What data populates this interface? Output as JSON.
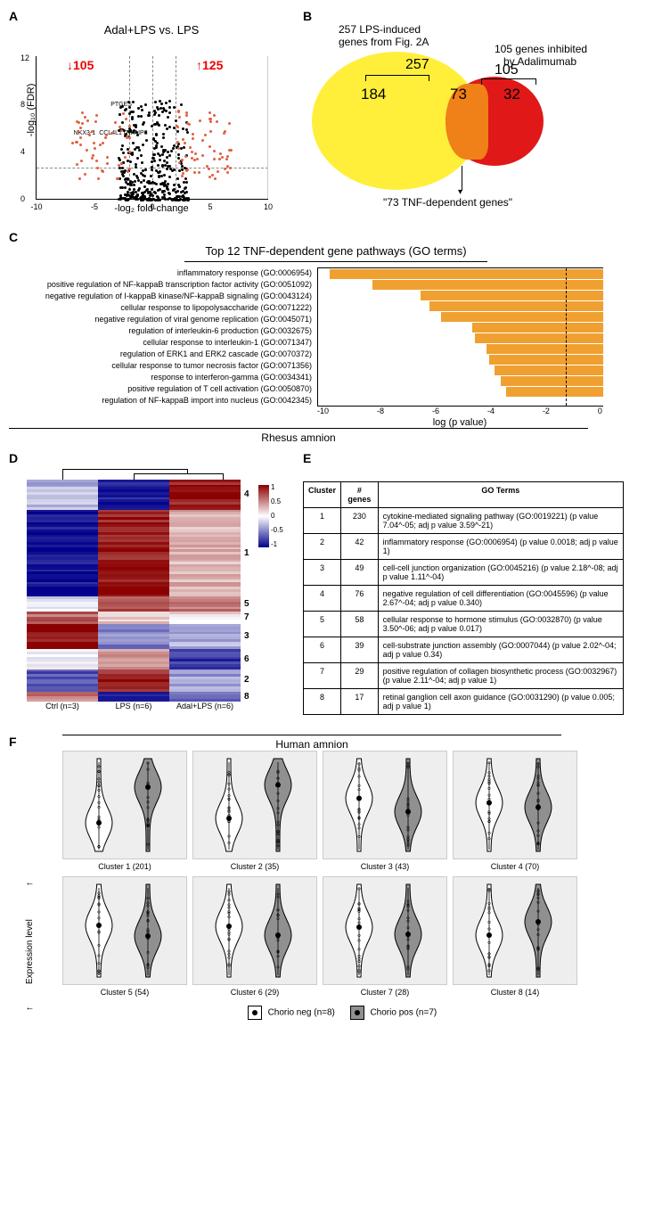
{
  "panelA": {
    "label": "A",
    "title": "Adal+LPS vs. LPS",
    "down_count": "105",
    "up_count": "125",
    "ylab": "-log₁₀ (FDR)",
    "xlab": "-log₂ fold-change",
    "xtick": [
      "-10",
      "-5",
      "0",
      "5",
      "10"
    ],
    "ytick": [
      "0",
      "4",
      "8",
      "12"
    ],
    "genes": [
      "PTGES",
      "NKX3-1",
      "CCL4L1",
      "TNFAIP3"
    ]
  },
  "panelB": {
    "label": "B",
    "left_title_1": "257 LPS-induced",
    "left_title_2": "genes from Fig. 2A",
    "right_title_1": "105 genes inhibited",
    "right_title_2": "by Adalimumab",
    "n_left_total": "257",
    "n_right_total": "105",
    "n_left_only": "184",
    "n_overlap": "73",
    "n_right_only": "32",
    "overlap_label": "\"73 TNF-dependent genes\"",
    "colors": {
      "left": "#ffef3a",
      "right": "#e01818",
      "overlap": "#f08018"
    }
  },
  "panelC": {
    "label": "C",
    "title": "Top 12 TNF-dependent gene pathways (GO terms)",
    "xlab": "log (p value)",
    "xtick": [
      "-10",
      "-8",
      "-6",
      "-4",
      "-2",
      "0"
    ],
    "dash_x": 1.3,
    "bars": [
      {
        "label": "inflammatory response (GO:0006954)",
        "val": 9.6
      },
      {
        "label": "positive regulation of NF-kappaB transcription factor activity (GO:0051092)",
        "val": 8.1
      },
      {
        "label": "negative regulation of I-kappaB kinase/NF-kappaB signaling (GO:0043124)",
        "val": 6.4
      },
      {
        "label": "cellular response to lipopolysaccharide (GO:0071222)",
        "val": 6.1
      },
      {
        "label": "negative regulation of viral genome replication (GO:0045071)",
        "val": 5.7
      },
      {
        "label": "regulation of interleukin-6 production (GO:0032675)",
        "val": 4.6
      },
      {
        "label": "cellular response to interleukin-1 (GO:0071347)",
        "val": 4.5
      },
      {
        "label": "regulation of ERK1 and ERK2 cascade (GO:0070372)",
        "val": 4.1
      },
      {
        "label": "cellular response to tumor necrosis factor (GO:0071356)",
        "val": 4.0
      },
      {
        "label": "response to interferon-gamma (GO:0034341)",
        "val": 3.8
      },
      {
        "label": "positive regulation of T cell activation (GO:0050870)",
        "val": 3.6
      },
      {
        "label": "regulation of NF-kappaB import into nucleus (GO:0042345)",
        "val": 3.4
      }
    ],
    "bar_color": "#f0a030"
  },
  "panelD": {
    "label": "D",
    "section_title": "Rhesus amnion",
    "cols": [
      "Ctrl (n=3)",
      "LPS (n=6)",
      "Adal+LPS (n=6)"
    ],
    "cluster_order": [
      "4",
      "1",
      "5",
      "7",
      "3",
      "6",
      "2",
      "8"
    ],
    "legend": {
      "max": "1",
      "mid_hi": "0.5",
      "zero": "0",
      "mid_lo": "-0.5",
      "min": "-1"
    }
  },
  "panelE": {
    "label": "E",
    "headers": [
      "Cluster",
      "# genes",
      "GO Terms"
    ],
    "rows": [
      [
        "1",
        "230",
        "cytokine-mediated signaling pathway (GO:0019221) (p value 7.04^-05; adj p value 3.59^-21)"
      ],
      [
        "2",
        "42",
        "inflammatory response (GO:0006954) (p value 0.0018; adj p value 1)"
      ],
      [
        "3",
        "49",
        "cell-cell junction organization (GO:0045216) (p value 2.18^-08; adj p value 1.11^-04)"
      ],
      [
        "4",
        "76",
        "negative regulation of cell differentiation (GO:0045596) (p value 2.67^-04; adj p value 0.340)"
      ],
      [
        "5",
        "58",
        "cellular response to hormone stimulus (GO:0032870) (p value 3.50^-06; adj p value 0.017)"
      ],
      [
        "6",
        "39",
        "cell-substrate junction assembly (GO:0007044) (p value 2.02^-04; adj p value 0.34)"
      ],
      [
        "7",
        "29",
        "positive regulation of collagen biosynthetic process (GO:0032967) (p value 2.11^-04; adj p value 1)"
      ],
      [
        "8",
        "17",
        "retinal ganglion cell axon guidance (GO:0031290) (p value 0.005; adj p value 1)"
      ]
    ]
  },
  "panelF": {
    "label": "F",
    "title": "Human amnion",
    "ylab": "Expression level",
    "clusters": [
      {
        "name": "Cluster 1 (201)",
        "neg_mean": -0.4,
        "pos_mean": 0.4
      },
      {
        "name": "Cluster 2 (35)",
        "neg_mean": -0.3,
        "pos_mean": 0.45
      },
      {
        "name": "Cluster 3 (43)",
        "neg_mean": 0.15,
        "pos_mean": -0.15
      },
      {
        "name": "Cluster 4 (70)",
        "neg_mean": 0.05,
        "pos_mean": -0.05
      },
      {
        "name": "Cluster 5 (54)",
        "neg_mean": 0.12,
        "pos_mean": -0.12
      },
      {
        "name": "Cluster 6 (29)",
        "neg_mean": 0.1,
        "pos_mean": -0.1
      },
      {
        "name": "Cluster 7 (28)",
        "neg_mean": 0.08,
        "pos_mean": -0.08
      },
      {
        "name": "Cluster 8 (14)",
        "neg_mean": -0.1,
        "pos_mean": 0.2
      }
    ],
    "legend": {
      "neg": "Chorio neg (n=8)",
      "pos": "Chorio pos (n=7)"
    },
    "colors": {
      "neg": "#ffffff",
      "pos": "#909090"
    }
  }
}
